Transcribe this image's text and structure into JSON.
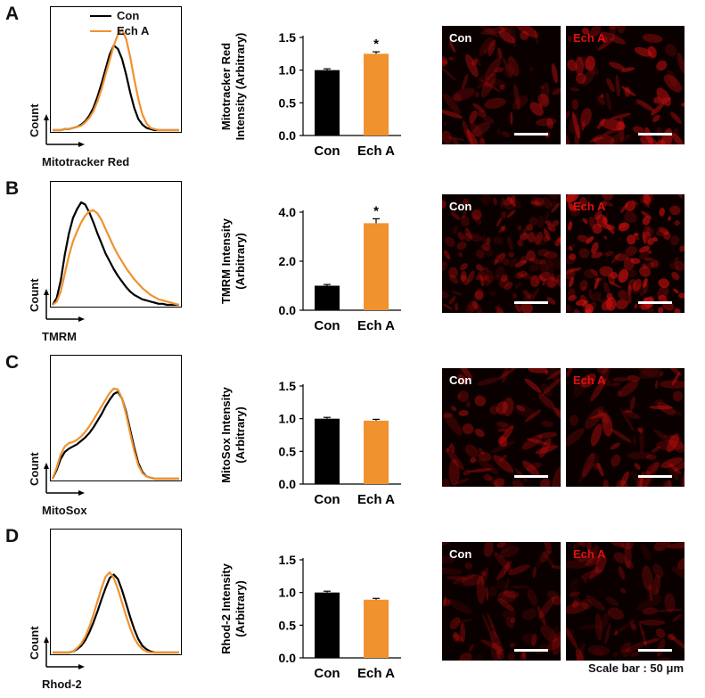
{
  "legend": {
    "items": [
      {
        "label": "Con",
        "color": "#000000"
      },
      {
        "label": "Ech A",
        "color": "#F0922E"
      }
    ]
  },
  "scale_note": "Scale bar : 50 μm",
  "colors": {
    "con": "#000000",
    "echa": "#F0922E",
    "image_red": "#e01010",
    "image_bg": "#0b0000"
  },
  "panels": [
    {
      "letter": "A",
      "histogram": {
        "xlabel": "Mitotracker Red",
        "ylabel": "Count"
      },
      "images": [
        {
          "label": "Con"
        },
        {
          "label": "Ech A"
        }
      ],
      "bar_tick_labels": [
        "0.0",
        "0.5",
        "1.0",
        "1.5"
      ],
      "bar_ylabel_lines": [
        "Mitotracker Red",
        "Intensity (Arbitrary)"
      ],
      "star": "*"
    },
    {
      "letter": "B",
      "histogram": {
        "xlabel": "TMRM",
        "ylabel": "Count"
      },
      "images": [
        {
          "label": "Con"
        },
        {
          "label": "Ech A"
        }
      ],
      "bar_tick_labels": [
        "0.0",
        "2.0",
        "4.0"
      ],
      "bar_ylabel_lines": [
        "TMRM Intensity",
        "(Arbitrary)"
      ],
      "star": "*"
    },
    {
      "letter": "C",
      "histogram": {
        "xlabel": "MitoSox",
        "ylabel": "Count"
      },
      "images": [
        {
          "label": "Con"
        },
        {
          "label": "Ech A"
        }
      ],
      "bar_tick_labels": [
        "0.0",
        "0.5",
        "1.0",
        "1.5"
      ],
      "bar_ylabel_lines": [
        "MitoSox Intensity",
        "(Arbitrary)"
      ],
      "star": ""
    },
    {
      "letter": "D",
      "histogram": {
        "xlabel": "Rhod-2",
        "ylabel": "Count"
      },
      "images": [
        {
          "label": "Con"
        },
        {
          "label": "Ech A"
        }
      ],
      "bar_tick_labels": [
        "0.0",
        "0.5",
        "1.0",
        "1.5"
      ],
      "bar_ylabel_lines": [
        "Rhod-2 Intensity",
        "(Arbitrary)"
      ],
      "star": ""
    }
  ],
  "chart_data": [
    {
      "type": "bar",
      "panel": "A",
      "categories": [
        "Con",
        "Ech A"
      ],
      "values": [
        1.0,
        1.25
      ],
      "errors": [
        0.02,
        0.03
      ],
      "ylim": [
        0,
        1.5
      ],
      "yticks": [
        0.0,
        0.5,
        1.0,
        1.5
      ],
      "ylabel": "Mitotracker Red Intensity (Arbitrary)",
      "significance": [
        "",
        "*"
      ],
      "colors": [
        "#000000",
        "#F0922E"
      ]
    },
    {
      "type": "bar",
      "panel": "B",
      "categories": [
        "Con",
        "Ech A"
      ],
      "values": [
        1.0,
        3.55
      ],
      "errors": [
        0.05,
        0.18
      ],
      "ylim": [
        0,
        4.0
      ],
      "yticks": [
        0.0,
        2.0,
        4.0
      ],
      "ylabel": "TMRM Intensity (Arbitrary)",
      "significance": [
        "",
        "*"
      ],
      "colors": [
        "#000000",
        "#F0922E"
      ]
    },
    {
      "type": "bar",
      "panel": "C",
      "categories": [
        "Con",
        "Ech A"
      ],
      "values": [
        1.0,
        0.97
      ],
      "errors": [
        0.02,
        0.02
      ],
      "ylim": [
        0,
        1.5
      ],
      "yticks": [
        0.0,
        0.5,
        1.0,
        1.5
      ],
      "ylabel": "MitoSox Intensity (Arbitrary)",
      "significance": [
        "",
        ""
      ],
      "colors": [
        "#000000",
        "#F0922E"
      ]
    },
    {
      "type": "bar",
      "panel": "D",
      "categories": [
        "Con",
        "Ech A"
      ],
      "values": [
        1.0,
        0.89
      ],
      "errors": [
        0.02,
        0.02
      ],
      "ylim": [
        0,
        1.5
      ],
      "yticks": [
        0.0,
        0.5,
        1.0,
        1.5
      ],
      "ylabel": "Rhod-2 Intensity (Arbitrary)",
      "significance": [
        "",
        ""
      ],
      "colors": [
        "#000000",
        "#F0922E"
      ]
    },
    {
      "type": "line",
      "panel": "A",
      "xlabel": "Mitotracker Red",
      "ylabel": "Count",
      "series": [
        {
          "name": "Con",
          "values": [
            0,
            0,
            0,
            1,
            1,
            2,
            3,
            5,
            8,
            13,
            20,
            30,
            42,
            55,
            68,
            76,
            73,
            64,
            50,
            34,
            20,
            10,
            5,
            2,
            1,
            0,
            0,
            0,
            0,
            0,
            0,
            0
          ]
        },
        {
          "name": "Ech A",
          "values": [
            0,
            0,
            0,
            1,
            1,
            2,
            3,
            4,
            7,
            11,
            17,
            26,
            37,
            50,
            63,
            76,
            86,
            90,
            82,
            66,
            46,
            28,
            14,
            6,
            2,
            1,
            0,
            0,
            0,
            0,
            0,
            0
          ]
        }
      ]
    },
    {
      "type": "line",
      "panel": "B",
      "xlabel": "TMRM",
      "ylabel": "Count",
      "series": [
        {
          "name": "Con",
          "values": [
            0,
            6,
            22,
            45,
            64,
            78,
            86,
            92,
            90,
            83,
            74,
            64,
            55,
            46,
            39,
            32,
            26,
            21,
            16,
            12,
            9,
            7,
            5,
            4,
            3,
            2,
            1,
            1,
            0,
            0,
            0,
            0
          ]
        },
        {
          "name": "Ech A",
          "values": [
            0,
            3,
            12,
            28,
            44,
            57,
            66,
            74,
            80,
            84,
            85,
            82,
            76,
            68,
            60,
            52,
            45,
            39,
            33,
            28,
            23,
            19,
            15,
            12,
            9,
            7,
            5,
            4,
            3,
            2,
            1,
            0
          ]
        }
      ]
    },
    {
      "type": "line",
      "panel": "C",
      "xlabel": "MitoSox",
      "ylabel": "Count",
      "series": [
        {
          "name": "Con",
          "values": [
            0,
            8,
            18,
            24,
            27,
            29,
            31,
            34,
            37,
            41,
            46,
            52,
            58,
            65,
            71,
            76,
            78,
            72,
            60,
            44,
            28,
            14,
            6,
            2,
            1,
            0,
            0,
            0,
            0,
            0,
            0,
            0
          ]
        },
        {
          "name": "Ech A",
          "values": [
            0,
            10,
            22,
            29,
            32,
            33,
            35,
            38,
            42,
            47,
            53,
            59,
            65,
            71,
            77,
            81,
            80,
            72,
            58,
            41,
            25,
            12,
            5,
            2,
            1,
            0,
            0,
            0,
            0,
            0,
            0,
            0
          ]
        }
      ]
    },
    {
      "type": "line",
      "panel": "D",
      "xlabel": "Rhod-2",
      "ylabel": "Count",
      "series": [
        {
          "name": "Con",
          "values": [
            0,
            0,
            0,
            0,
            0,
            1,
            3,
            6,
            11,
            18,
            27,
            37,
            48,
            58,
            67,
            70,
            66,
            56,
            44,
            32,
            21,
            12,
            6,
            3,
            1,
            0,
            0,
            0,
            0,
            0,
            0,
            0
          ]
        },
        {
          "name": "Ech A",
          "values": [
            0,
            0,
            0,
            0,
            0,
            1,
            4,
            8,
            14,
            23,
            34,
            46,
            58,
            68,
            72,
            67,
            57,
            45,
            33,
            22,
            13,
            7,
            3,
            1,
            0,
            0,
            0,
            0,
            0,
            0,
            0,
            0
          ]
        }
      ]
    }
  ]
}
